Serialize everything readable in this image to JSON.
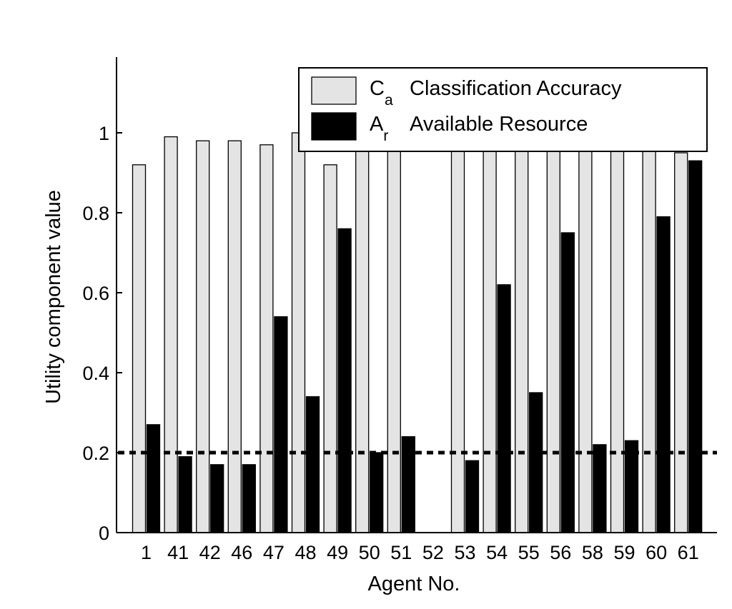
{
  "chart_data": {
    "type": "bar",
    "xlabel": "Agent No.",
    "ylabel": "Utility component value",
    "ylim": [
      0,
      1.2
    ],
    "yticks": [
      "0",
      "0.2",
      "0.4",
      "0.6",
      "0.8",
      "1"
    ],
    "ytick_values": [
      0,
      0.2,
      0.4,
      0.6,
      0.8,
      1
    ],
    "categories": [
      "1",
      "41",
      "42",
      "46",
      "47",
      "48",
      "49",
      "50",
      "51",
      "52",
      "53",
      "54",
      "55",
      "56",
      "58",
      "59",
      "60",
      "61"
    ],
    "series": [
      {
        "name": "Classification Accuracy",
        "symbol": "C",
        "symbol_sub": "a",
        "color": "#e4e4e4",
        "values": [
          0.92,
          0.99,
          0.98,
          0.98,
          0.97,
          1.0,
          0.92,
          1.0,
          1.0,
          0.0,
          1.0,
          1.0,
          1.0,
          1.0,
          1.0,
          1.0,
          1.0,
          0.95
        ]
      },
      {
        "name": "Available Resource",
        "symbol": "A",
        "symbol_sub": "r",
        "color": "#000000",
        "values": [
          0.27,
          0.19,
          0.17,
          0.17,
          0.54,
          0.34,
          0.76,
          0.2,
          0.24,
          0.0,
          0.18,
          0.62,
          0.35,
          0.75,
          0.22,
          0.23,
          0.79,
          0.93
        ]
      }
    ],
    "threshold": {
      "value": 0.2,
      "style": "dotted"
    },
    "legend_position": "top-right",
    "grid": false
  }
}
